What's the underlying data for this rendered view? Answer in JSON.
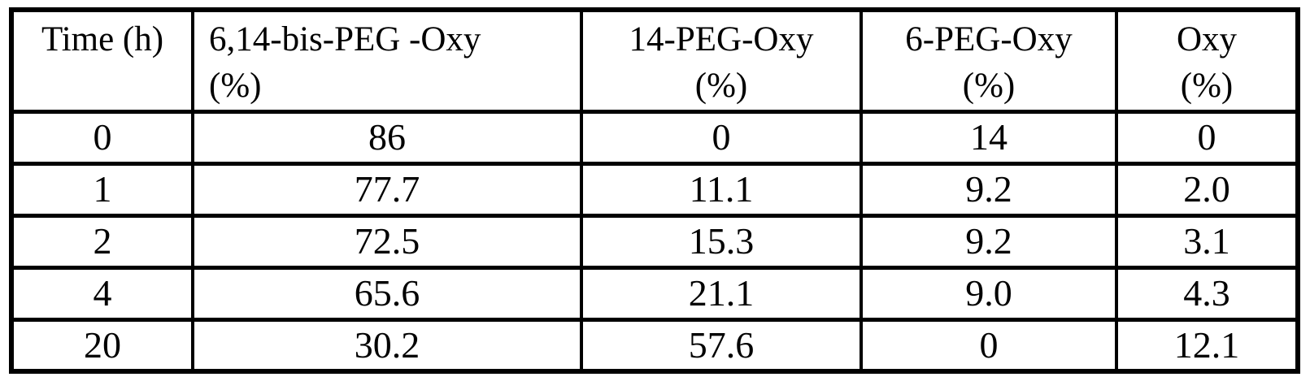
{
  "table": {
    "columns": [
      {
        "line1": "Time (h)",
        "line2": ""
      },
      {
        "line1": "6,14-bis-PEG -Oxy",
        "line2": "(%)"
      },
      {
        "line1": "14-PEG-Oxy",
        "line2": "(%)"
      },
      {
        "line1": "6-PEG-Oxy",
        "line2": "(%)"
      },
      {
        "line1": "Oxy",
        "line2": "(%)"
      }
    ],
    "rows": [
      {
        "cells": [
          "0",
          "86",
          "0",
          "14",
          "0"
        ]
      },
      {
        "cells": [
          "1",
          "77.7",
          "11.1",
          "9.2",
          "2.0"
        ]
      },
      {
        "cells": [
          "2",
          "72.5",
          "15.3",
          "9.2",
          "3.1"
        ]
      },
      {
        "cells": [
          "4",
          "65.6",
          "21.1",
          "9.0",
          "4.3"
        ]
      },
      {
        "cells": [
          "20",
          "30.2",
          "57.6",
          "0",
          "12.1"
        ]
      }
    ]
  },
  "chart_data": {
    "type": "table",
    "title": "",
    "columns": [
      "Time (h)",
      "6,14-bis-PEG -Oxy (%)",
      "14-PEG-Oxy (%)",
      "6-PEG-Oxy (%)",
      "Oxy (%)"
    ],
    "x": [
      0,
      1,
      2,
      4,
      20
    ],
    "series": [
      {
        "name": "6,14-bis-PEG -Oxy (%)",
        "values": [
          86,
          77.7,
          72.5,
          65.6,
          30.2
        ]
      },
      {
        "name": "14-PEG-Oxy (%)",
        "values": [
          0,
          11.1,
          15.3,
          21.1,
          57.6
        ]
      },
      {
        "name": "6-PEG-Oxy (%)",
        "values": [
          14,
          9.2,
          9.2,
          9.0,
          0
        ]
      },
      {
        "name": "Oxy (%)",
        "values": [
          0,
          2.0,
          3.1,
          4.3,
          12.1
        ]
      }
    ]
  },
  "colors": {
    "border": "#000000",
    "background": "#ffffff",
    "text": "#000000"
  }
}
